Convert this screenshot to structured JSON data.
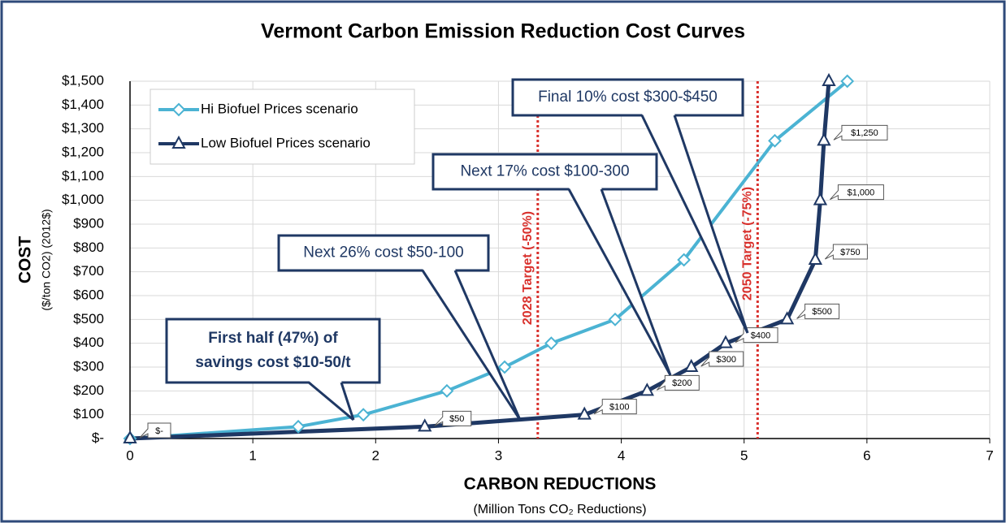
{
  "chart_data": {
    "type": "line",
    "title": "Vermont Carbon Emission Reduction Cost Curves",
    "x_label": "CARBON REDUCTIONS",
    "x_sublabel": "(Million Tons CO₂ Reductions)",
    "y_label": "COST",
    "y_sublabel": "($/ton CO2)  (2012$)",
    "xlim": [
      0,
      7
    ],
    "xticks": [
      0,
      1,
      2,
      3,
      4,
      5,
      6,
      7
    ],
    "ylim": [
      0,
      1500
    ],
    "yticks": [
      {
        "value": 0,
        "label": "$-"
      },
      {
        "value": 100,
        "label": "$100"
      },
      {
        "value": 200,
        "label": "$200"
      },
      {
        "value": 300,
        "label": "$300"
      },
      {
        "value": 400,
        "label": "$400"
      },
      {
        "value": 500,
        "label": "$500"
      },
      {
        "value": 600,
        "label": "$600"
      },
      {
        "value": 700,
        "label": "$700"
      },
      {
        "value": 800,
        "label": "$800"
      },
      {
        "value": 900,
        "label": "$900"
      },
      {
        "value": 1000,
        "label": "$1,000"
      },
      {
        "value": 1100,
        "label": "$1,100"
      },
      {
        "value": 1200,
        "label": "$1,200"
      },
      {
        "value": 1300,
        "label": "$1,300"
      },
      {
        "value": 1400,
        "label": "$1,400"
      },
      {
        "value": 1500,
        "label": "$1,500"
      }
    ],
    "grid": true,
    "legend": "upper left",
    "series": [
      {
        "name": "Hi Biofuel Prices scenario",
        "color": "#4bb3d3",
        "marker": "diamond",
        "x": [
          0,
          1.37,
          1.9,
          2.58,
          3.05,
          3.43,
          3.95,
          4.51,
          5.25,
          5.84
        ],
        "values": [
          0,
          50,
          100,
          200,
          300,
          400,
          500,
          750,
          1250,
          1500
        ]
      },
      {
        "name": "Low Biofuel Prices scenario",
        "color": "#1f3864",
        "marker": "triangle",
        "x": [
          0,
          2.4,
          3.7,
          4.21,
          4.57,
          4.85,
          5.35,
          5.58,
          5.62,
          5.65,
          5.69
        ],
        "values": [
          0,
          50,
          100,
          200,
          300,
          400,
          500,
          750,
          1000,
          1250,
          1500
        ],
        "value_labels": [
          "$-",
          "$50",
          "$100",
          "$200",
          "$300",
          "$400",
          "$500",
          "$750",
          "$1,000",
          "$1,250",
          null
        ]
      }
    ],
    "reference_lines": [
      {
        "x": 3.32,
        "label": "2028 Target (-50%)",
        "color": "#d9302c"
      },
      {
        "x": 5.11,
        "label": "2050 Target (-75%)",
        "color": "#d9302c"
      }
    ],
    "annotations": [
      {
        "lines": [
          "First half (47%) of",
          "savings cost $10-50/t"
        ]
      },
      {
        "lines": [
          "Next 26% cost $50-100"
        ]
      },
      {
        "lines": [
          "Next 17% cost $100-300"
        ]
      },
      {
        "lines": [
          "Final 10% cost $300-$450"
        ]
      }
    ]
  }
}
